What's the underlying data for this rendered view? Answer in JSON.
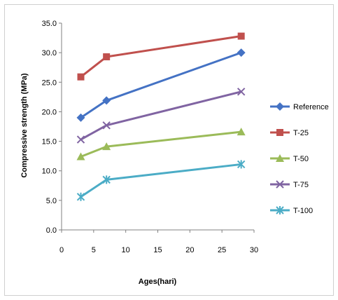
{
  "chart_data": {
    "type": "line",
    "title": "",
    "xlabel": "Ages(hari)",
    "ylabel": "Compressive strength (MPa)",
    "xlim": [
      0,
      30
    ],
    "ylim": [
      0,
      35
    ],
    "xticks": [
      0,
      5,
      10,
      15,
      20,
      25,
      30
    ],
    "yticks": [
      0,
      5,
      10,
      15,
      20,
      25,
      30,
      35
    ],
    "xtick_labels": [
      "0",
      "5",
      "10",
      "15",
      "20",
      "25",
      "30"
    ],
    "ytick_labels": [
      "0.0",
      "5.0",
      "10.0",
      "15.0",
      "20.0",
      "25.0",
      "30.0",
      "35.0"
    ],
    "grid": false,
    "legend_position": "right",
    "series": [
      {
        "name": "Reference",
        "x": [
          3,
          7,
          28
        ],
        "y": [
          19.0,
          21.9,
          30.0
        ],
        "color": "#4472C4",
        "marker": "diamond"
      },
      {
        "name": "T-25",
        "x": [
          3,
          7,
          28
        ],
        "y": [
          25.9,
          29.3,
          32.8
        ],
        "color": "#C0504D",
        "marker": "square"
      },
      {
        "name": "T-50",
        "x": [
          3,
          7,
          28
        ],
        "y": [
          12.4,
          14.1,
          16.6
        ],
        "color": "#9BBB59",
        "marker": "triangle"
      },
      {
        "name": "T-75",
        "x": [
          3,
          7,
          28
        ],
        "y": [
          15.3,
          17.7,
          23.4
        ],
        "color": "#8064A2",
        "marker": "x"
      },
      {
        "name": "T-100",
        "x": [
          3,
          7,
          28
        ],
        "y": [
          5.6,
          8.5,
          11.1
        ],
        "color": "#4BACC6",
        "marker": "star"
      }
    ]
  }
}
